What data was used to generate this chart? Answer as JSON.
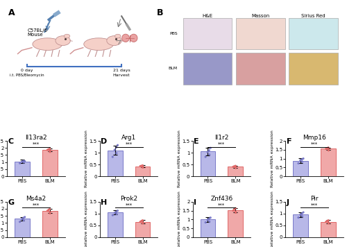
{
  "panels_row1": [
    {
      "label": "C",
      "title": "Il13ra2",
      "pbs_bar": 1.05,
      "blm_bar": 1.85,
      "pbs_dots": [
        0.92,
        0.98,
        1.03,
        1.08,
        1.06
      ],
      "blm_dots": [
        1.72,
        1.8,
        1.86,
        1.9,
        1.94
      ],
      "pbs_err": 0.13,
      "blm_err": 0.1,
      "ylim": [
        0,
        2.5
      ],
      "yticks": [
        0.0,
        0.5,
        1.0,
        1.5,
        2.0,
        2.5
      ],
      "sig": "***"
    },
    {
      "label": "D",
      "title": "Arg1",
      "pbs_bar": 1.1,
      "blm_bar": 0.42,
      "pbs_dots": [
        0.82,
        0.98,
        1.12,
        1.22,
        1.32
      ],
      "blm_dots": [
        0.37,
        0.4,
        0.43,
        0.44,
        0.46
      ],
      "pbs_err": 0.2,
      "blm_err": 0.05,
      "ylim": [
        0,
        1.5
      ],
      "yticks": [
        0.0,
        0.5,
        1.0,
        1.5
      ],
      "sig": "***"
    },
    {
      "label": "E",
      "title": "Il1r2",
      "pbs_bar": 1.05,
      "blm_bar": 0.4,
      "pbs_dots": [
        0.82,
        0.92,
        1.03,
        1.1,
        1.2
      ],
      "blm_dots": [
        0.35,
        0.38,
        0.4,
        0.42,
        0.44
      ],
      "pbs_err": 0.16,
      "blm_err": 0.05,
      "ylim": [
        0,
        1.5
      ],
      "yticks": [
        0.0,
        0.5,
        1.0,
        1.5
      ],
      "sig": "***"
    },
    {
      "label": "F",
      "title": "Mmp16",
      "pbs_bar": 0.88,
      "blm_bar": 1.55,
      "pbs_dots": [
        0.73,
        0.83,
        0.9,
        0.95,
        1.0
      ],
      "blm_dots": [
        1.46,
        1.5,
        1.55,
        1.58,
        1.62
      ],
      "pbs_err": 0.13,
      "blm_err": 0.07,
      "ylim": [
        0,
        2.0
      ],
      "yticks": [
        0.0,
        0.5,
        1.0,
        1.5,
        2.0
      ],
      "sig": "***"
    }
  ],
  "panels_row2": [
    {
      "label": "G",
      "title": "Ms4a2",
      "pbs_bar": 1.3,
      "blm_bar": 1.85,
      "pbs_dots": [
        1.08,
        1.18,
        1.28,
        1.36,
        1.42
      ],
      "blm_dots": [
        1.68,
        1.76,
        1.86,
        1.92,
        1.98
      ],
      "pbs_err": 0.13,
      "blm_err": 0.16,
      "ylim": [
        0,
        2.5
      ],
      "yticks": [
        0.0,
        0.5,
        1.0,
        1.5,
        2.0,
        2.5
      ],
      "sig": "***"
    },
    {
      "label": "H",
      "title": "Prok2",
      "pbs_bar": 1.05,
      "blm_bar": 0.65,
      "pbs_dots": [
        0.93,
        0.98,
        1.03,
        1.07,
        1.12
      ],
      "blm_dots": [
        0.58,
        0.62,
        0.65,
        0.68,
        0.71
      ],
      "pbs_err": 0.09,
      "blm_err": 0.07,
      "ylim": [
        0,
        1.5
      ],
      "yticks": [
        0.0,
        0.5,
        1.0,
        1.5
      ],
      "sig": "***"
    },
    {
      "label": "I",
      "title": "Znf436",
      "pbs_bar": 1.0,
      "blm_bar": 1.52,
      "pbs_dots": [
        0.83,
        0.88,
        0.98,
        1.04,
        1.1
      ],
      "blm_dots": [
        1.38,
        1.44,
        1.5,
        1.56,
        1.63
      ],
      "pbs_err": 0.13,
      "blm_err": 0.13,
      "ylim": [
        0,
        2.0
      ],
      "yticks": [
        0.0,
        0.5,
        1.0,
        1.5,
        2.0
      ],
      "sig": "***"
    },
    {
      "label": "J",
      "title": "Pir",
      "pbs_bar": 0.95,
      "blm_bar": 0.65,
      "pbs_dots": [
        0.83,
        0.88,
        0.95,
        1.0,
        1.05
      ],
      "blm_dots": [
        0.58,
        0.62,
        0.65,
        0.68,
        0.71
      ],
      "pbs_err": 0.11,
      "blm_err": 0.07,
      "ylim": [
        0,
        1.5
      ],
      "yticks": [
        0.0,
        0.5,
        1.0,
        1.5
      ],
      "sig": "***"
    }
  ],
  "pbs_color": "#7878c8",
  "blm_color": "#e06868",
  "pbs_bar_color": "#b8b8e8",
  "blm_bar_color": "#f0a8a8",
  "bar_edge_pbs": "#7878c8",
  "bar_edge_blm": "#e06868",
  "xlabel_pbs": "PBS",
  "xlabel_blm": "BLM",
  "ylabel": "Relative mRNA expression",
  "sig_fontsize": 5,
  "title_fontsize": 6.5,
  "label_fontsize": 8,
  "tick_fontsize": 5,
  "ylabel_fontsize": 4.5,
  "stain_titles": [
    "H&E",
    "Masson",
    "Sirius Red"
  ],
  "row_labels": [
    "PBS",
    "BLM"
  ],
  "pbs_he_color": "#e8dce8",
  "pbs_masson_color": "#f0d8d0",
  "pbs_sirius_color": "#cce8ec",
  "blm_he_color": "#9898c8",
  "blm_masson_color": "#d8a0a0",
  "blm_sirius_color": "#d8b870"
}
